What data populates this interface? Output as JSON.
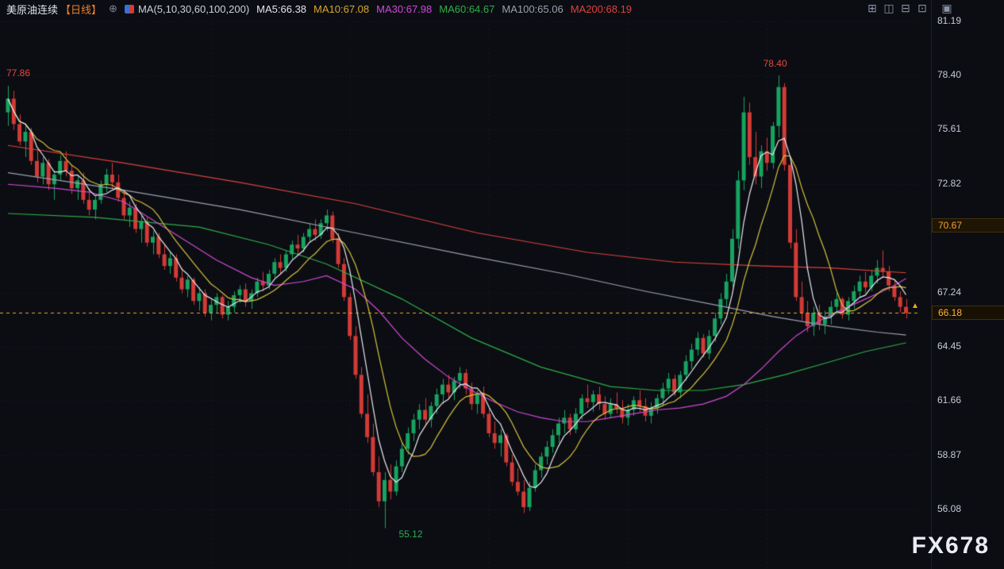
{
  "window": {
    "watermark": "FX678"
  },
  "legend": {
    "symbol": "美原油连续",
    "period": "【日线】",
    "period_color": "#ed7d2b",
    "compare_icon": "⊕",
    "ma_group": "MA(5,10,30,60,100,200)",
    "items": [
      {
        "label": "MA5:66.38",
        "color": "#e3e6ee"
      },
      {
        "label": "MA10:67.08",
        "color": "#d8a62e"
      },
      {
        "label": "MA30:67.98",
        "color": "#cf4bd6"
      },
      {
        "label": "MA60:64.67",
        "color": "#2fae47"
      },
      {
        "label": "MA100:65.06",
        "color": "#9aa1ae"
      },
      {
        "label": "MA200:68.19",
        "color": "#de423c"
      }
    ]
  },
  "toolbar": {
    "icons": [
      {
        "name": "layout-grid",
        "glyph": "⊞"
      },
      {
        "name": "layout-vertical-split",
        "glyph": "◫"
      },
      {
        "name": "layout-horizontal-split",
        "glyph": "⊟"
      },
      {
        "name": "layout-single",
        "glyph": "⊡"
      }
    ],
    "panel_icon": {
      "name": "panel-maximize",
      "glyph": "▣"
    }
  },
  "chart_data": {
    "type": "candlestick",
    "title": "美原油连续 日线",
    "symbol": "美原油连续",
    "timeframe": "日线",
    "y_ticks": [
      81.19,
      78.4,
      75.61,
      72.82,
      67.24,
      64.45,
      61.66,
      58.87,
      56.08
    ],
    "price_markers": [
      {
        "label": "70.67",
        "value": 70.67,
        "current": false
      },
      {
        "label": "66.18",
        "value": 66.18,
        "current": true
      }
    ],
    "current_price": 66.18,
    "annotations": [
      {
        "text": "77.86",
        "color": "#e2483f",
        "index": 0,
        "price": 78.55,
        "dx": -2
      },
      {
        "text": "78.40",
        "color": "#e2483f",
        "index": 132,
        "price": 79.05,
        "dx": -12
      },
      {
        "text": "55.12",
        "color": "#2fae52",
        "index": 65,
        "price": 54.85,
        "dx": 18
      }
    ],
    "colors": {
      "up": "#17a360",
      "down": "#d23b36",
      "grid": "#262c3d",
      "current_line": "#f5a623",
      "background": "#0b0d13"
    },
    "vgrid_indices": [
      35,
      59,
      83,
      107,
      131
    ],
    "ma_lines": [
      {
        "name": "MA200",
        "color": "#de423c",
        "points": [
          [
            0,
            74.8
          ],
          [
            20,
            73.9
          ],
          [
            40,
            72.9
          ],
          [
            60,
            71.8
          ],
          [
            81,
            70.3
          ],
          [
            100,
            69.3
          ],
          [
            115,
            68.8
          ],
          [
            130,
            68.6
          ],
          [
            142,
            68.5
          ],
          [
            155,
            68.25
          ]
        ]
      },
      {
        "name": "MA100",
        "color": "#9aa1ae",
        "points": [
          [
            0,
            73.4
          ],
          [
            20,
            72.5
          ],
          [
            40,
            71.5
          ],
          [
            60,
            70.3
          ],
          [
            80,
            69.1
          ],
          [
            96,
            68.2
          ],
          [
            110,
            67.3
          ],
          [
            122,
            66.6
          ],
          [
            132,
            66.0
          ],
          [
            142,
            65.5
          ],
          [
            150,
            65.2
          ],
          [
            155,
            65.05
          ]
        ]
      },
      {
        "name": "MA60",
        "color": "#2fae47",
        "points": [
          [
            0,
            71.3
          ],
          [
            15,
            71.1
          ],
          [
            33,
            70.6
          ],
          [
            45,
            69.7
          ],
          [
            55,
            68.7
          ],
          [
            68,
            66.9
          ],
          [
            80,
            64.9
          ],
          [
            92,
            63.4
          ],
          [
            104,
            62.4
          ],
          [
            112,
            62.2
          ],
          [
            120,
            62.2
          ],
          [
            127,
            62.5
          ],
          [
            134,
            63.0
          ],
          [
            141,
            63.6
          ],
          [
            148,
            64.2
          ],
          [
            155,
            64.65
          ]
        ]
      },
      {
        "name": "MA30",
        "color": "#cf4bd6",
        "points": [
          [
            0,
            72.8
          ],
          [
            8,
            72.6
          ],
          [
            14,
            72.4
          ],
          [
            20,
            71.9
          ],
          [
            28,
            70.4
          ],
          [
            36,
            68.9
          ],
          [
            42,
            68.0
          ],
          [
            46,
            67.6
          ],
          [
            51,
            67.8
          ],
          [
            55,
            68.1
          ],
          [
            60,
            67.4
          ],
          [
            64,
            66.3
          ],
          [
            68,
            64.9
          ],
          [
            72,
            63.8
          ],
          [
            76,
            62.9
          ],
          [
            80,
            62.2
          ],
          [
            84,
            61.6
          ],
          [
            88,
            61.1
          ],
          [
            92,
            60.8
          ],
          [
            96,
            60.6
          ],
          [
            100,
            60.6
          ],
          [
            104,
            60.8
          ],
          [
            108,
            61.0
          ],
          [
            112,
            61.2
          ],
          [
            116,
            61.3
          ],
          [
            120,
            61.5
          ],
          [
            124,
            61.9
          ],
          [
            127,
            62.5
          ],
          [
            130,
            63.3
          ],
          [
            133,
            64.2
          ],
          [
            136,
            65.0
          ],
          [
            139,
            65.6
          ],
          [
            142,
            66.1
          ],
          [
            145,
            66.5
          ],
          [
            148,
            66.9
          ],
          [
            151,
            67.3
          ],
          [
            153,
            67.6
          ],
          [
            155,
            67.95
          ]
        ]
      },
      {
        "name": "MA10",
        "color": "#d8c23a",
        "period": 10
      },
      {
        "name": "MA5",
        "color": "#e8eaf0",
        "period": 5
      }
    ],
    "candles": [
      [
        76.5,
        77.86,
        75.8,
        77.2
      ],
      [
        77.2,
        77.6,
        75.6,
        75.9
      ],
      [
        75.9,
        76.4,
        74.8,
        75.0
      ],
      [
        75.0,
        75.8,
        74.2,
        75.5
      ],
      [
        75.5,
        75.7,
        73.8,
        74.0
      ],
      [
        74.0,
        74.6,
        72.9,
        73.2
      ],
      [
        73.2,
        74.2,
        72.8,
        73.9
      ],
      [
        73.9,
        74.1,
        72.5,
        72.8
      ],
      [
        72.8,
        73.5,
        72.0,
        73.3
      ],
      [
        73.3,
        74.3,
        73.0,
        74.0
      ],
      [
        74.0,
        74.5,
        73.2,
        73.5
      ],
      [
        73.5,
        73.8,
        72.3,
        72.6
      ],
      [
        72.6,
        73.2,
        72.0,
        73.0
      ],
      [
        73.0,
        73.4,
        71.8,
        72.0
      ],
      [
        72.0,
        72.6,
        71.2,
        71.5
      ],
      [
        71.5,
        72.2,
        71.0,
        72.0
      ],
      [
        72.0,
        73.0,
        71.8,
        72.8
      ],
      [
        72.8,
        73.6,
        72.4,
        73.3
      ],
      [
        73.3,
        73.9,
        72.6,
        72.9
      ],
      [
        72.9,
        73.3,
        71.9,
        72.1
      ],
      [
        72.1,
        72.5,
        71.0,
        71.2
      ],
      [
        71.2,
        71.9,
        70.6,
        71.6
      ],
      [
        71.6,
        71.8,
        70.3,
        70.5
      ],
      [
        70.5,
        71.2,
        69.8,
        70.9
      ],
      [
        70.9,
        71.1,
        69.6,
        69.8
      ],
      [
        69.8,
        70.4,
        69.2,
        70.1
      ],
      [
        70.1,
        70.3,
        69.0,
        69.2
      ],
      [
        69.2,
        69.7,
        68.4,
        68.6
      ],
      [
        68.6,
        69.3,
        68.2,
        69.0
      ],
      [
        69.0,
        69.2,
        67.8,
        68.0
      ],
      [
        68.0,
        68.5,
        67.2,
        67.4
      ],
      [
        67.4,
        68.1,
        67.0,
        67.9
      ],
      [
        67.9,
        68.0,
        66.6,
        66.8
      ],
      [
        66.8,
        67.5,
        66.3,
        67.2
      ],
      [
        67.2,
        67.4,
        66.0,
        66.2
      ],
      [
        66.2,
        66.9,
        65.8,
        66.6
      ],
      [
        66.6,
        67.2,
        66.2,
        67.0
      ],
      [
        67.0,
        67.1,
        65.9,
        66.1
      ],
      [
        66.1,
        66.8,
        65.8,
        66.5
      ],
      [
        66.5,
        67.3,
        66.2,
        67.1
      ],
      [
        67.1,
        67.6,
        66.7,
        67.4
      ],
      [
        67.4,
        67.7,
        66.5,
        66.8
      ],
      [
        66.8,
        67.4,
        66.4,
        67.2
      ],
      [
        67.2,
        68.0,
        67.0,
        67.8
      ],
      [
        67.8,
        68.3,
        67.3,
        67.6
      ],
      [
        67.6,
        68.4,
        67.4,
        68.2
      ],
      [
        68.2,
        69.0,
        68.0,
        68.8
      ],
      [
        68.8,
        69.2,
        68.2,
        68.5
      ],
      [
        68.5,
        69.4,
        68.3,
        69.2
      ],
      [
        69.2,
        69.9,
        68.9,
        69.7
      ],
      [
        69.7,
        70.2,
        69.2,
        69.5
      ],
      [
        69.5,
        70.3,
        69.3,
        70.1
      ],
      [
        70.1,
        70.8,
        69.8,
        70.5
      ],
      [
        70.5,
        71.0,
        69.9,
        70.2
      ],
      [
        70.2,
        71.0,
        70.0,
        70.8
      ],
      [
        70.8,
        71.5,
        70.4,
        71.2
      ],
      [
        71.2,
        71.4,
        69.8,
        70.0
      ],
      [
        70.0,
        70.3,
        68.5,
        68.7
      ],
      [
        68.7,
        69.0,
        66.8,
        67.0
      ],
      [
        67.0,
        67.2,
        64.8,
        65.0
      ],
      [
        65.0,
        65.5,
        62.8,
        63.0
      ],
      [
        63.0,
        63.4,
        60.8,
        61.0
      ],
      [
        61.0,
        62.0,
        59.5,
        59.8
      ],
      [
        59.8,
        60.5,
        57.8,
        58.0
      ],
      [
        58.0,
        58.8,
        56.2,
        56.5
      ],
      [
        56.5,
        58.0,
        55.12,
        57.6
      ],
      [
        57.6,
        58.4,
        56.6,
        57.0
      ],
      [
        57.0,
        58.6,
        56.8,
        58.3
      ],
      [
        58.3,
        59.5,
        58.0,
        59.2
      ],
      [
        59.2,
        60.3,
        58.9,
        60.0
      ],
      [
        60.0,
        61.0,
        59.6,
        60.7
      ],
      [
        60.7,
        61.5,
        60.2,
        61.2
      ],
      [
        61.2,
        61.8,
        60.4,
        60.7
      ],
      [
        60.7,
        61.6,
        60.3,
        61.4
      ],
      [
        61.4,
        62.3,
        61.0,
        62.0
      ],
      [
        62.0,
        62.8,
        61.5,
        62.5
      ],
      [
        62.5,
        63.0,
        61.8,
        62.1
      ],
      [
        62.1,
        62.9,
        61.7,
        62.7
      ],
      [
        62.7,
        63.4,
        62.3,
        63.1
      ],
      [
        63.1,
        63.3,
        62.0,
        62.3
      ],
      [
        62.3,
        62.6,
        61.2,
        61.5
      ],
      [
        61.5,
        62.2,
        61.0,
        62.0
      ],
      [
        62.0,
        62.4,
        60.8,
        61.0
      ],
      [
        61.0,
        61.3,
        59.8,
        60.0
      ],
      [
        60.0,
        60.6,
        59.2,
        59.5
      ],
      [
        59.5,
        60.2,
        58.8,
        59.9
      ],
      [
        59.9,
        60.0,
        58.3,
        58.5
      ],
      [
        58.5,
        58.9,
        57.3,
        57.5
      ],
      [
        57.5,
        58.2,
        56.8,
        57.0
      ],
      [
        57.0,
        57.6,
        55.9,
        56.2
      ],
      [
        56.2,
        57.5,
        56.0,
        57.2
      ],
      [
        57.2,
        58.4,
        57.0,
        58.1
      ],
      [
        58.1,
        59.0,
        57.7,
        58.8
      ],
      [
        58.8,
        59.6,
        58.4,
        59.3
      ],
      [
        59.3,
        60.2,
        59.0,
        59.9
      ],
      [
        59.9,
        60.8,
        59.5,
        60.5
      ],
      [
        60.5,
        61.2,
        60.0,
        60.8
      ],
      [
        60.8,
        61.0,
        59.9,
        60.2
      ],
      [
        60.2,
        61.3,
        60.0,
        61.0
      ],
      [
        61.0,
        62.0,
        60.7,
        61.8
      ],
      [
        61.8,
        62.5,
        61.3,
        61.6
      ],
      [
        61.6,
        62.2,
        61.1,
        62.0
      ],
      [
        62.0,
        62.4,
        61.2,
        61.5
      ],
      [
        61.5,
        61.9,
        60.7,
        61.0
      ],
      [
        61.0,
        61.8,
        60.8,
        61.5
      ],
      [
        61.5,
        62.1,
        61.0,
        61.3
      ],
      [
        61.3,
        61.7,
        60.5,
        60.8
      ],
      [
        60.8,
        61.5,
        60.4,
        61.2
      ],
      [
        61.2,
        61.9,
        60.9,
        61.7
      ],
      [
        61.7,
        62.2,
        61.1,
        61.4
      ],
      [
        61.4,
        61.8,
        60.6,
        60.9
      ],
      [
        60.9,
        61.6,
        60.5,
        61.3
      ],
      [
        61.3,
        62.0,
        61.0,
        61.8
      ],
      [
        61.8,
        62.6,
        61.4,
        62.3
      ],
      [
        62.3,
        63.1,
        62.0,
        62.8
      ],
      [
        62.8,
        63.0,
        61.9,
        62.1
      ],
      [
        62.1,
        63.2,
        61.8,
        63.0
      ],
      [
        63.0,
        64.0,
        62.7,
        63.7
      ],
      [
        63.7,
        64.6,
        63.3,
        64.3
      ],
      [
        64.3,
        65.2,
        64.0,
        64.9
      ],
      [
        64.9,
        65.1,
        63.9,
        64.1
      ],
      [
        64.1,
        65.3,
        63.8,
        65.0
      ],
      [
        65.0,
        66.2,
        64.7,
        65.9
      ],
      [
        65.9,
        67.2,
        65.6,
        66.9
      ],
      [
        66.9,
        68.2,
        66.5,
        67.8
      ],
      [
        67.8,
        70.5,
        67.5,
        70.0
      ],
      [
        70.0,
        73.5,
        69.5,
        73.0
      ],
      [
        73.0,
        77.3,
        72.5,
        76.5
      ],
      [
        76.5,
        77.0,
        73.8,
        74.2
      ],
      [
        74.2,
        75.5,
        72.8,
        73.2
      ],
      [
        73.2,
        74.8,
        72.6,
        74.5
      ],
      [
        74.5,
        75.2,
        73.5,
        73.9
      ],
      [
        73.9,
        76.0,
        73.6,
        75.8
      ],
      [
        75.8,
        78.4,
        75.2,
        77.8
      ],
      [
        77.8,
        78.0,
        73.5,
        73.8
      ],
      [
        73.8,
        74.2,
        69.5,
        69.8
      ],
      [
        69.8,
        70.5,
        66.8,
        67.0
      ],
      [
        67.0,
        67.8,
        65.8,
        66.2
      ],
      [
        66.2,
        66.8,
        65.2,
        65.5
      ],
      [
        65.5,
        66.5,
        65.0,
        66.2
      ],
      [
        66.2,
        66.6,
        65.3,
        65.6
      ],
      [
        65.6,
        66.3,
        65.1,
        66.0
      ],
      [
        66.0,
        66.8,
        65.6,
        66.5
      ],
      [
        66.5,
        67.2,
        66.1,
        66.9
      ],
      [
        66.9,
        67.0,
        65.9,
        66.1
      ],
      [
        66.1,
        67.0,
        65.8,
        66.8
      ],
      [
        66.8,
        67.6,
        66.4,
        67.3
      ],
      [
        67.3,
        68.1,
        67.0,
        67.8
      ],
      [
        67.8,
        68.3,
        67.2,
        67.5
      ],
      [
        67.5,
        68.4,
        67.3,
        68.1
      ],
      [
        68.1,
        68.9,
        67.7,
        68.5
      ],
      [
        68.5,
        69.4,
        68.0,
        68.3
      ],
      [
        68.3,
        68.6,
        67.3,
        67.6
      ],
      [
        67.6,
        67.9,
        66.8,
        67.0
      ],
      [
        67.0,
        67.3,
        66.2,
        66.5
      ],
      [
        66.5,
        66.9,
        65.9,
        66.18
      ]
    ]
  }
}
